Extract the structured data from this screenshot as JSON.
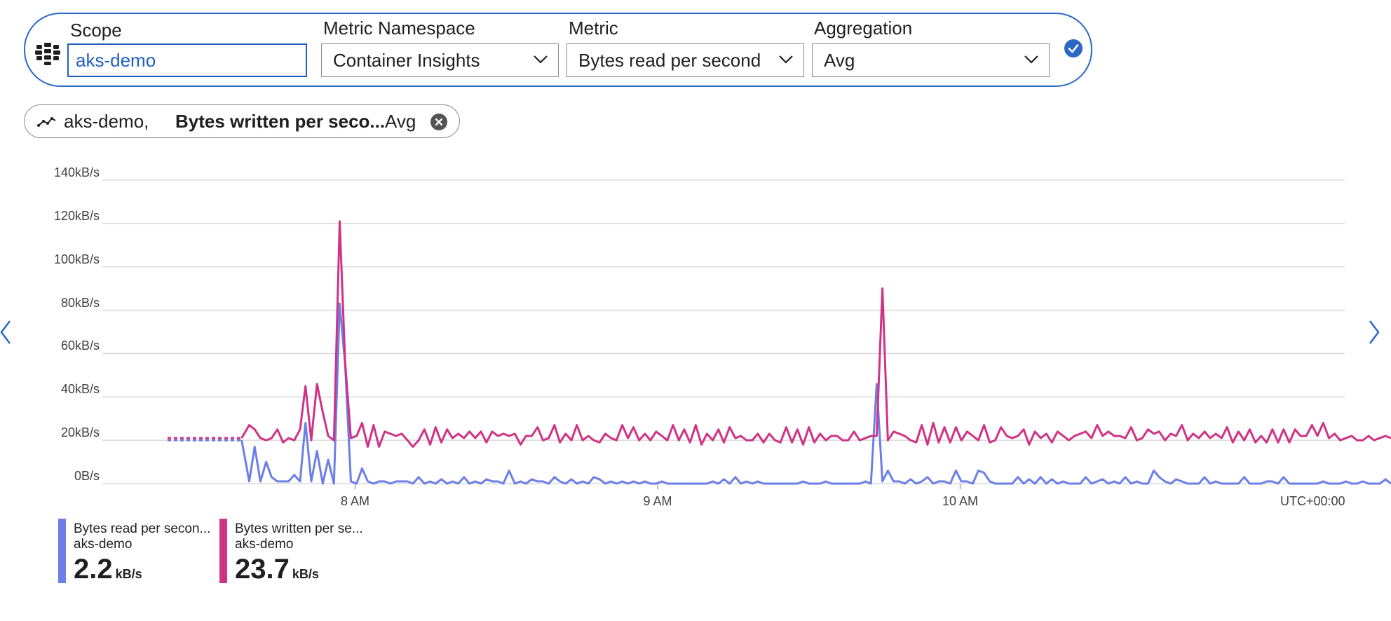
{
  "picker": {
    "scope_label": "Scope",
    "scope_value": "aks-demo",
    "namespace_label": "Metric Namespace",
    "namespace_value": "Container Insights",
    "metric_label": "Metric",
    "metric_value": "Bytes read per second",
    "aggregation_label": "Aggregation",
    "aggregation_value": "Avg",
    "icons": [
      "resource-group-icon",
      "chevron-down-icon",
      "checkmark-icon"
    ]
  },
  "metric_pill": {
    "resource": "aks-demo,",
    "metric": "Bytes written per seco...",
    "aggregation": "Avg",
    "icons": [
      "line-chart-icon",
      "close-icon"
    ]
  },
  "navigation": {
    "icons": [
      "chevron-left-icon",
      "chevron-right-icon"
    ]
  },
  "colors": {
    "accent": "#2b68c4",
    "read_series": "#6b7fe6",
    "written_series": "#cf3385",
    "grid": "#d4d4d4"
  },
  "chart_data": {
    "type": "line",
    "y_ticks": [
      "0B/s",
      "20kB/s",
      "40kB/s",
      "60kB/s",
      "80kB/s",
      "100kB/s",
      "120kB/s",
      "140kB/s"
    ],
    "ylim_kBps": [
      0,
      140
    ],
    "x_ticks": [
      "8 AM",
      "9 AM",
      "10 AM"
    ],
    "timezone": "UTC+00:00",
    "x_units": "hours of day (UTC)",
    "xlim_hours": [
      7.38,
      11.5
    ],
    "grid": true,
    "legend_position": "bottom-left",
    "series": [
      {
        "label": "Bytes read per secon...",
        "resource": "aks-demo",
        "summary_value": "2.2",
        "summary_unit": "kB/s",
        "color": "#6b7fe6",
        "x_hours": [
          7.38,
          7.625,
          7.65,
          7.668,
          7.687,
          7.706,
          7.724,
          7.743,
          7.762,
          7.78,
          7.799,
          7.818,
          7.836,
          7.855,
          7.874,
          7.893,
          7.911,
          7.93,
          7.949,
          7.967,
          7.986,
          8.005,
          8.023,
          8.042,
          8.061,
          8.079,
          8.098,
          8.117,
          8.135,
          8.154,
          8.173,
          8.191,
          8.21,
          8.229,
          8.248,
          8.266,
          8.285,
          8.304,
          8.322,
          8.341,
          8.36,
          8.378,
          8.397,
          8.416,
          8.434,
          8.453,
          8.472,
          8.49,
          8.509,
          8.528,
          8.547,
          8.565,
          8.584,
          8.603,
          8.621,
          8.64,
          8.659,
          8.677,
          8.696,
          8.715,
          8.733,
          8.752,
          8.771,
          8.789,
          8.808,
          8.827,
          8.846,
          8.864,
          8.883,
          8.902,
          8.92,
          8.939,
          8.958,
          8.976,
          8.995,
          9.014,
          9.032,
          9.051,
          9.07,
          9.088,
          9.107,
          9.126,
          9.145,
          9.163,
          9.182,
          9.201,
          9.219,
          9.238,
          9.257,
          9.275,
          9.294,
          9.313,
          9.331,
          9.35,
          9.369,
          9.388,
          9.406,
          9.425,
          9.444,
          9.462,
          9.481,
          9.5,
          9.518,
          9.537,
          9.556,
          9.574,
          9.593,
          9.612,
          9.63,
          9.649,
          9.668,
          9.687,
          9.705,
          9.724,
          9.743,
          9.761,
          9.78,
          9.799,
          9.817,
          9.836,
          9.855,
          9.873,
          9.892,
          9.911,
          9.929,
          9.948,
          9.967,
          9.986,
          10.004,
          10.023,
          10.042,
          10.06,
          10.079,
          10.098,
          10.116,
          10.135,
          10.154,
          10.172,
          10.191,
          10.21,
          10.228,
          10.247,
          10.266,
          10.285,
          10.303,
          10.322,
          10.341,
          10.359,
          10.378,
          10.397,
          10.415,
          10.434,
          10.453,
          10.471,
          10.49,
          10.509,
          10.527,
          10.546,
          10.565,
          10.584,
          10.602,
          10.621,
          10.64,
          10.658,
          10.677,
          10.696,
          10.714,
          10.733,
          10.752,
          10.77,
          10.789,
          10.808,
          10.826,
          10.845,
          10.864,
          10.882,
          10.901,
          10.92,
          10.939,
          10.957,
          10.976,
          10.995,
          11.013,
          11.032,
          11.051,
          11.069,
          11.088,
          11.107,
          11.125,
          11.144,
          11.163,
          11.181,
          11.2,
          11.219,
          11.238,
          11.256,
          11.275,
          11.294,
          11.312,
          11.331,
          11.35,
          11.368,
          11.387,
          11.406,
          11.424
        ],
        "values_kBps": [
          20,
          20,
          1,
          17,
          1,
          10,
          3,
          1,
          1,
          1,
          4,
          1,
          28,
          1,
          15,
          0,
          11,
          0,
          83,
          55,
          1,
          0,
          7,
          1,
          0,
          1,
          1,
          0,
          1,
          1,
          1,
          0,
          3,
          0,
          1,
          0,
          2,
          0,
          1,
          0,
          3,
          0,
          1,
          0,
          2,
          1,
          1,
          0,
          6,
          0,
          1,
          0,
          2,
          1,
          1,
          0,
          3,
          1,
          0,
          2,
          0,
          1,
          0,
          3,
          2,
          0,
          1,
          0,
          1,
          0,
          1,
          0,
          1,
          0,
          0,
          1,
          0,
          0,
          0,
          0,
          0,
          0,
          0,
          0,
          1,
          0,
          2,
          0,
          3,
          0,
          1,
          0,
          1,
          0,
          0,
          0,
          0,
          0,
          0,
          0,
          1,
          0,
          0,
          0,
          1,
          0,
          0,
          0,
          0,
          0,
          0,
          1,
          0,
          46,
          1,
          6,
          1,
          1,
          0,
          2,
          0,
          1,
          3,
          0,
          1,
          1,
          0,
          6,
          1,
          1,
          0,
          6,
          5,
          1,
          0,
          0,
          0,
          0,
          3,
          0,
          2,
          0,
          3,
          0,
          2,
          0,
          1,
          0,
          0,
          0,
          3,
          0,
          1,
          2,
          0,
          1,
          0,
          3,
          0,
          1,
          0,
          0,
          6,
          3,
          1,
          0,
          2,
          1,
          0,
          0,
          0,
          3,
          0,
          1,
          0,
          0,
          0,
          0,
          3,
          0,
          0,
          0,
          1,
          1,
          0,
          3,
          0,
          0,
          0,
          0,
          0,
          0,
          1,
          0,
          0,
          0,
          1,
          0,
          0,
          1,
          0,
          0,
          0,
          2,
          0
        ]
      },
      {
        "label": "Bytes written per se...",
        "resource": "aks-demo",
        "summary_value": "23.7",
        "summary_unit": "kB/s",
        "color": "#cf3385",
        "x_hours": [
          7.38,
          7.625,
          7.65,
          7.668,
          7.687,
          7.706,
          7.724,
          7.743,
          7.762,
          7.78,
          7.799,
          7.818,
          7.836,
          7.855,
          7.874,
          7.893,
          7.911,
          7.93,
          7.949,
          7.967,
          7.986,
          8.005,
          8.023,
          8.042,
          8.061,
          8.079,
          8.098,
          8.117,
          8.135,
          8.154,
          8.173,
          8.191,
          8.21,
          8.229,
          8.248,
          8.266,
          8.285,
          8.304,
          8.322,
          8.341,
          8.36,
          8.378,
          8.397,
          8.416,
          8.434,
          8.453,
          8.472,
          8.49,
          8.509,
          8.528,
          8.547,
          8.565,
          8.584,
          8.603,
          8.621,
          8.64,
          8.659,
          8.677,
          8.696,
          8.715,
          8.733,
          8.752,
          8.771,
          8.789,
          8.808,
          8.827,
          8.846,
          8.864,
          8.883,
          8.902,
          8.92,
          8.939,
          8.958,
          8.976,
          8.995,
          9.014,
          9.032,
          9.051,
          9.07,
          9.088,
          9.107,
          9.126,
          9.145,
          9.163,
          9.182,
          9.201,
          9.219,
          9.238,
          9.257,
          9.275,
          9.294,
          9.313,
          9.331,
          9.35,
          9.369,
          9.388,
          9.406,
          9.425,
          9.444,
          9.462,
          9.481,
          9.5,
          9.518,
          9.537,
          9.556,
          9.574,
          9.593,
          9.612,
          9.63,
          9.649,
          9.668,
          9.687,
          9.705,
          9.724,
          9.743,
          9.761,
          9.78,
          9.799,
          9.817,
          9.836,
          9.855,
          9.873,
          9.892,
          9.911,
          9.929,
          9.948,
          9.967,
          9.986,
          10.004,
          10.023,
          10.042,
          10.06,
          10.079,
          10.098,
          10.116,
          10.135,
          10.154,
          10.172,
          10.191,
          10.21,
          10.228,
          10.247,
          10.266,
          10.285,
          10.303,
          10.322,
          10.341,
          10.359,
          10.378,
          10.397,
          10.415,
          10.434,
          10.453,
          10.471,
          10.49,
          10.509,
          10.527,
          10.546,
          10.565,
          10.584,
          10.602,
          10.621,
          10.64,
          10.658,
          10.677,
          10.696,
          10.714,
          10.733,
          10.752,
          10.77,
          10.789,
          10.808,
          10.826,
          10.845,
          10.864,
          10.882,
          10.901,
          10.92,
          10.939,
          10.957,
          10.976,
          10.995,
          11.013,
          11.032,
          11.051,
          11.069,
          11.088,
          11.107,
          11.125,
          11.144,
          11.163,
          11.181,
          11.2,
          11.219,
          11.238,
          11.256,
          11.275,
          11.294,
          11.312,
          11.331,
          11.35,
          11.368,
          11.387,
          11.406,
          11.424
        ],
        "values_kBps": [
          21,
          21,
          27,
          25,
          21,
          20,
          21,
          25,
          19,
          21,
          20,
          25,
          45,
          20,
          46,
          33,
          22,
          20,
          121,
          56,
          21,
          22,
          28,
          17,
          27,
          17,
          24,
          23,
          22,
          23,
          20,
          17,
          20,
          25,
          18,
          26,
          19,
          25,
          21,
          23,
          21,
          24,
          21,
          24,
          19,
          24,
          22,
          23,
          22,
          23,
          18,
          22,
          22,
          26,
          20,
          21,
          27,
          19,
          23,
          20,
          27,
          20,
          22,
          20,
          19,
          23,
          21,
          20,
          27,
          21,
          26,
          20,
          23,
          20,
          24,
          22,
          20,
          27,
          20,
          25,
          19,
          27,
          18,
          23,
          20,
          25,
          19,
          26,
          21,
          22,
          20,
          20,
          23,
          19,
          23,
          20,
          19,
          26,
          19,
          25,
          18,
          26,
          19,
          23,
          20,
          22,
          22,
          20,
          20,
          24,
          20,
          21,
          22,
          22,
          90,
          20,
          24,
          23,
          22,
          20,
          19,
          27,
          18,
          28,
          19,
          26,
          19,
          26,
          20,
          24,
          22,
          20,
          27,
          19,
          20,
          26,
          22,
          21,
          22,
          25,
          18,
          24,
          21,
          23,
          19,
          24,
          22,
          20,
          22,
          23,
          24,
          21,
          27,
          22,
          24,
          22,
          22,
          21,
          26,
          20,
          21,
          25,
          23,
          24,
          20,
          23,
          22,
          27,
          20,
          23,
          21,
          24,
          21,
          23,
          21,
          26,
          19,
          24,
          20,
          25,
          19,
          22,
          19,
          25,
          19,
          25,
          19,
          25,
          22,
          22,
          27,
          22,
          28,
          21,
          23,
          20,
          21,
          22,
          20,
          20,
          22,
          20,
          21,
          22,
          21,
          24,
          22,
          30,
          20,
          25
        ]
      }
    ]
  }
}
